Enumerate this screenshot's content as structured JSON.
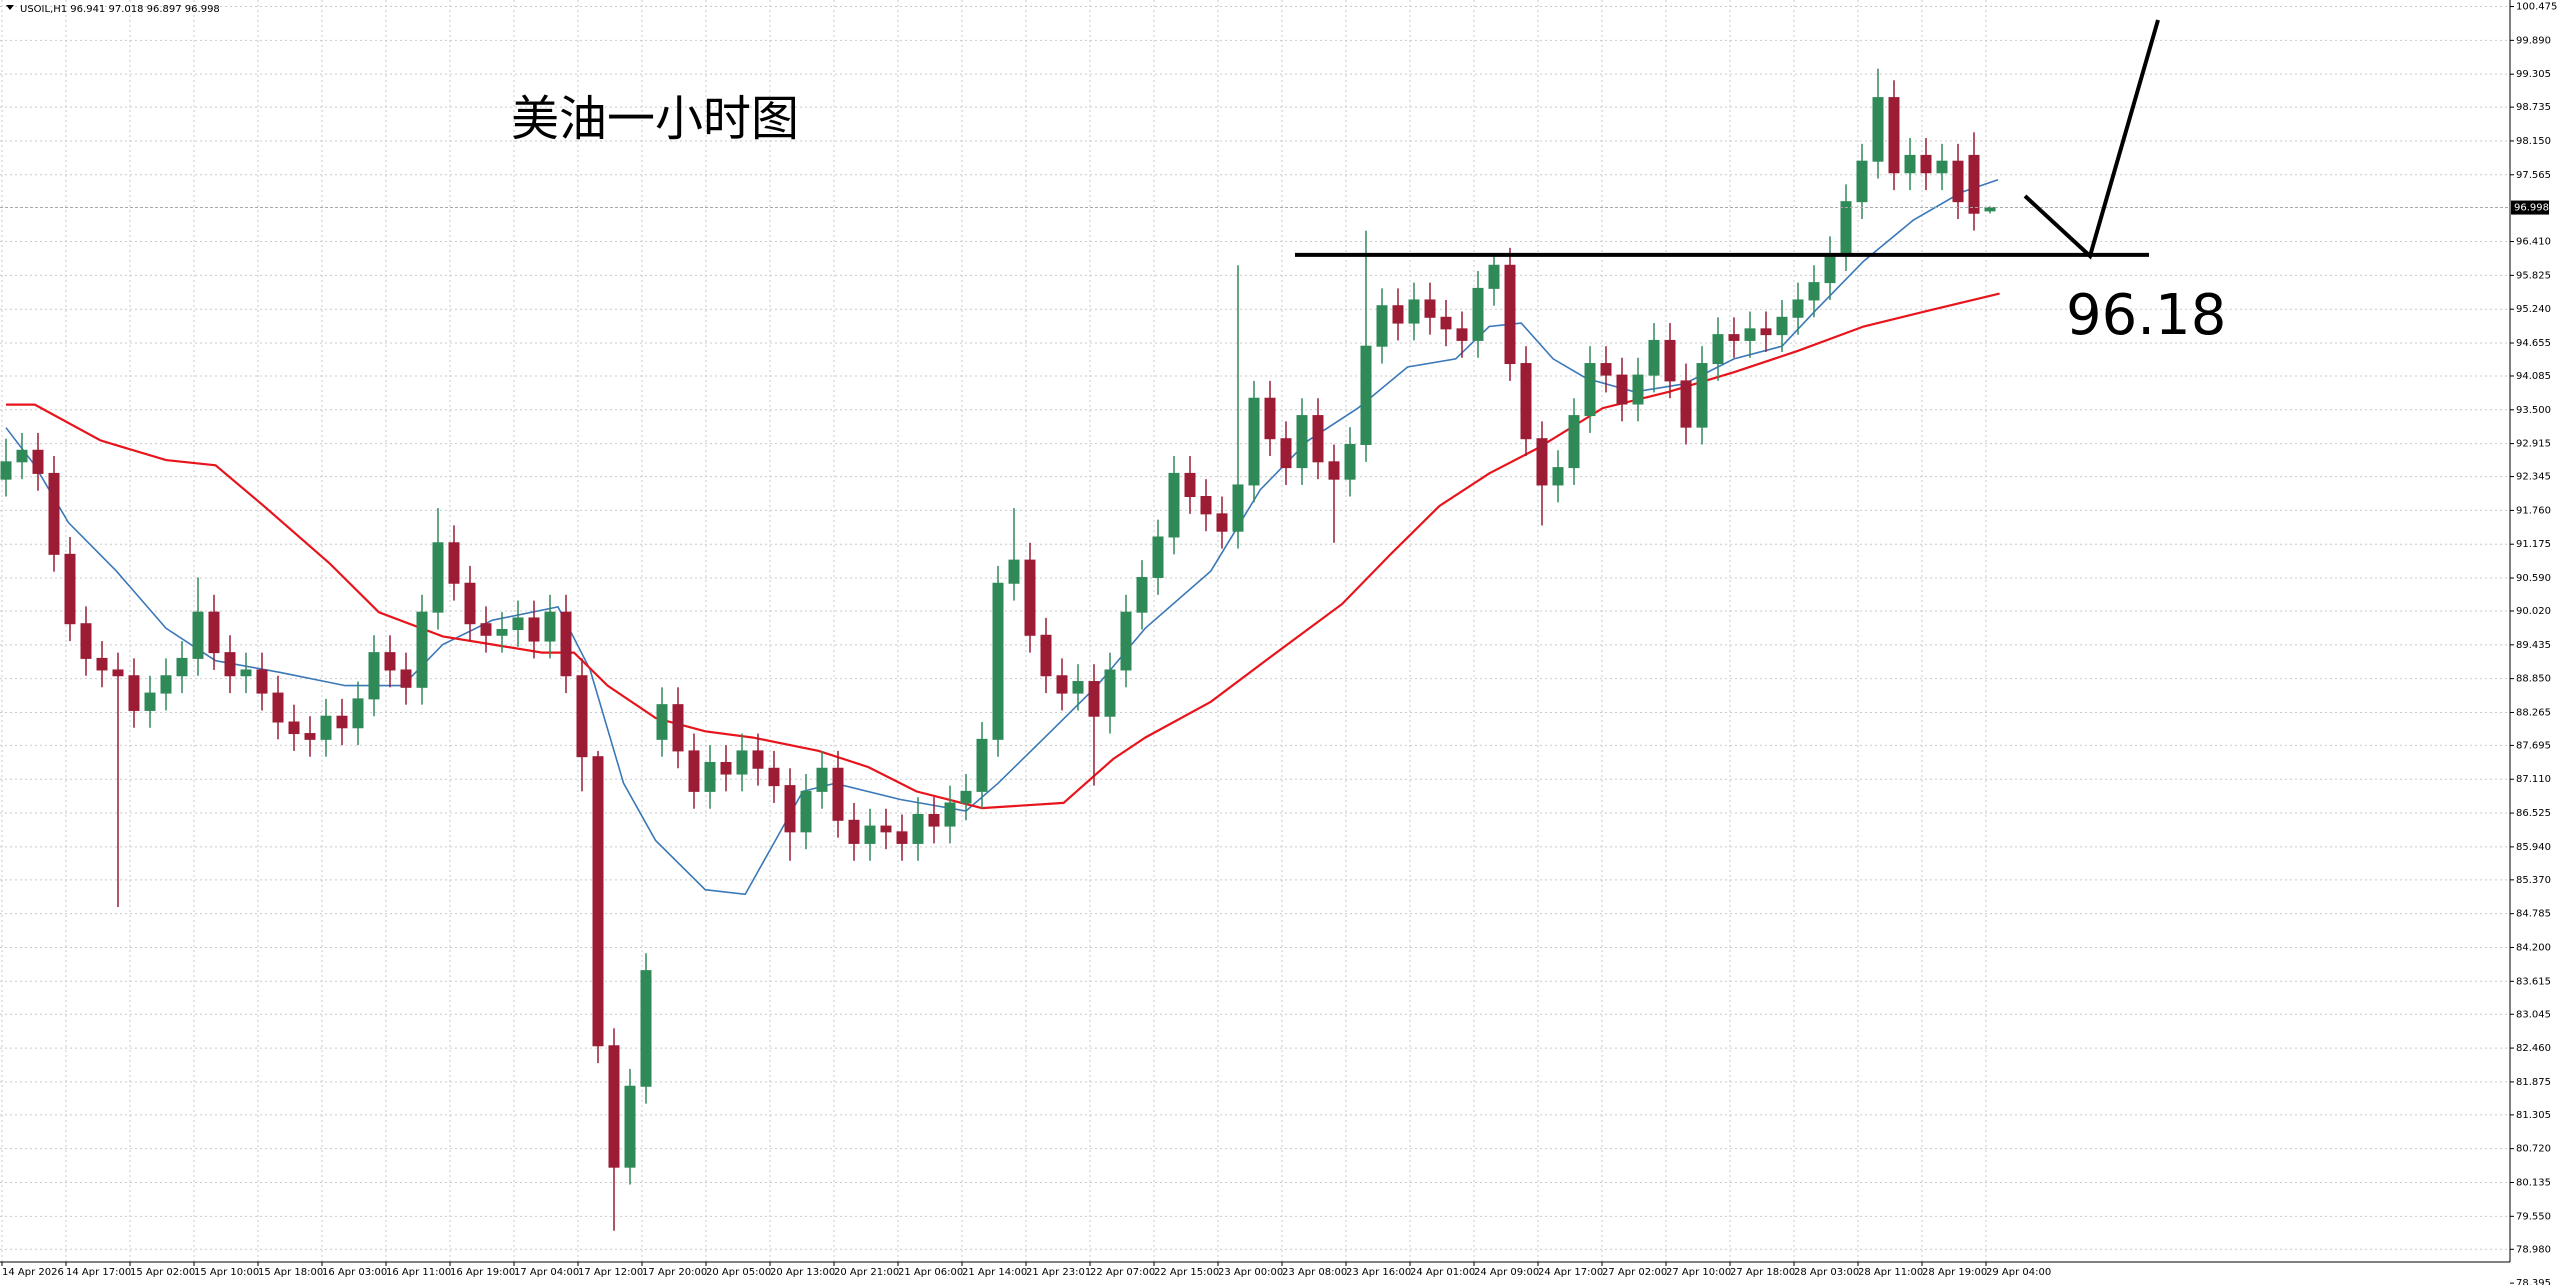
{
  "chart_data": {
    "type": "candlestick",
    "title": "USOIL,H1 96.941 97.018 96.897 96.998",
    "annotation": "美油一小时图",
    "level": 96.18,
    "x_labels": [
      "14 Apr 2026",
      "14 Apr 17:00",
      "15 Apr 02:00",
      "15 Apr 10:00",
      "15 Apr 18:00",
      "16 Apr 03:00",
      "16 Apr 11:00",
      "16 Apr 19:00",
      "17 Apr 04:00",
      "17 Apr 12:00",
      "17 Apr 20:00",
      "20 Apr 05:00",
      "20 Apr 13:00",
      "20 Apr 21:00",
      "21 Apr 06:00",
      "21 Apr 14:00",
      "21 Apr 23:01",
      "22 Apr 07:00",
      "22 Apr 15:00",
      "23 Apr 00:00",
      "23 Apr 08:00",
      "23 Apr 16:00",
      "24 Apr 01:00",
      "24 Apr 09:00",
      "24 Apr 17:00",
      "27 Apr 02:00",
      "27 Apr 10:00",
      "27 Apr 18:00",
      "28 Apr 03:00",
      "28 Apr 11:00",
      "28 Apr 19:00",
      "29 Apr 04:00"
    ],
    "open": [
      92.3,
      92.6,
      92.8,
      92.4,
      91.0,
      89.8,
      89.2,
      89.0,
      88.9,
      88.3,
      88.6,
      88.9,
      89.2,
      90.0,
      89.3,
      88.9,
      89.0,
      88.6,
      88.1,
      87.9,
      87.8,
      88.2,
      88.0,
      88.5,
      89.3,
      89.0,
      88.7,
      90.0,
      91.2,
      90.5,
      89.8,
      89.6,
      89.7,
      89.9,
      89.5,
      90.0,
      88.9,
      87.5,
      82.5,
      80.4,
      81.8,
      87.8,
      88.4,
      87.6,
      86.9,
      87.4,
      87.2,
      87.6,
      87.3,
      87.0,
      86.2,
      86.9,
      87.3,
      86.4,
      86.0,
      86.3,
      86.2,
      86.0,
      86.5,
      86.3,
      86.7,
      86.9,
      87.8,
      90.5,
      90.9,
      89.6,
      88.9,
      88.6,
      88.8,
      88.2,
      89.0,
      90.0,
      90.6,
      91.3,
      92.4,
      92.0,
      91.7,
      91.4,
      92.2,
      93.7,
      93.0,
      92.5,
      93.4,
      92.6,
      92.3,
      92.9,
      94.6,
      95.3,
      95.0,
      95.4,
      95.1,
      94.9,
      94.7,
      95.6,
      96.0,
      94.3,
      93.0,
      92.2,
      92.5,
      93.4,
      94.3,
      94.1,
      93.6,
      94.1,
      94.7,
      94.0,
      93.2,
      94.3,
      94.8,
      94.7,
      94.9,
      94.8,
      95.1,
      95.4,
      95.7,
      96.2,
      97.1,
      97.8,
      98.9,
      97.6,
      97.9,
      97.6,
      97.8,
      97.9,
      96.941
    ],
    "high": [
      93.0,
      93.1,
      93.1,
      92.7,
      91.3,
      90.1,
      89.5,
      89.3,
      89.2,
      88.9,
      89.2,
      89.5,
      90.6,
      90.3,
      89.6,
      89.3,
      89.3,
      88.9,
      88.4,
      88.2,
      88.5,
      88.5,
      88.8,
      89.6,
      89.6,
      89.3,
      90.3,
      91.8,
      91.5,
      90.8,
      90.1,
      90.0,
      90.2,
      90.2,
      90.3,
      90.3,
      89.2,
      87.6,
      82.8,
      82.1,
      84.1,
      88.7,
      88.7,
      87.9,
      87.7,
      87.7,
      87.9,
      87.9,
      87.6,
      87.3,
      87.2,
      87.6,
      87.6,
      86.7,
      86.6,
      86.6,
      86.5,
      86.8,
      86.8,
      87.0,
      87.2,
      88.1,
      90.8,
      91.8,
      91.2,
      89.9,
      89.2,
      89.1,
      89.1,
      89.3,
      90.3,
      90.9,
      91.6,
      92.7,
      92.7,
      92.3,
      92.0,
      96.0,
      94.0,
      94.0,
      93.3,
      93.7,
      93.7,
      92.9,
      93.2,
      96.6,
      95.6,
      95.6,
      95.7,
      95.7,
      95.4,
      95.2,
      95.9,
      96.2,
      96.3,
      94.6,
      93.3,
      92.8,
      93.7,
      94.6,
      94.6,
      94.4,
      94.4,
      95.0,
      95.0,
      94.3,
      94.6,
      95.1,
      95.1,
      95.2,
      95.2,
      95.4,
      95.7,
      96.0,
      96.5,
      97.4,
      98.1,
      99.4,
      99.2,
      98.2,
      98.2,
      98.1,
      98.1,
      98.3,
      97.018
    ],
    "low": [
      92.0,
      92.3,
      92.1,
      90.7,
      89.5,
      88.9,
      88.7,
      84.9,
      88.0,
      88.0,
      88.3,
      88.6,
      88.9,
      89.0,
      88.6,
      88.6,
      88.3,
      87.8,
      87.6,
      87.5,
      87.5,
      87.7,
      87.7,
      88.2,
      88.7,
      88.4,
      88.4,
      89.7,
      90.2,
      89.5,
      89.3,
      89.3,
      89.4,
      89.2,
      89.2,
      88.6,
      86.9,
      82.2,
      79.3,
      80.1,
      81.5,
      87.5,
      87.3,
      86.6,
      86.6,
      86.9,
      86.9,
      87.0,
      86.7,
      85.7,
      85.9,
      86.6,
      86.1,
      85.7,
      85.7,
      85.9,
      85.7,
      85.7,
      86.0,
      86.0,
      86.4,
      86.6,
      87.5,
      90.2,
      89.3,
      88.6,
      88.3,
      88.3,
      87.0,
      87.9,
      88.7,
      89.7,
      90.3,
      91.0,
      91.7,
      91.4,
      91.1,
      91.1,
      91.9,
      92.7,
      92.2,
      92.2,
      92.3,
      91.2,
      92.0,
      92.6,
      94.3,
      94.7,
      94.7,
      94.8,
      94.6,
      94.4,
      94.4,
      95.3,
      94.0,
      92.7,
      91.5,
      91.9,
      92.2,
      93.1,
      93.8,
      93.3,
      93.3,
      93.8,
      93.7,
      92.9,
      92.9,
      94.0,
      94.4,
      94.4,
      94.5,
      94.5,
      94.8,
      95.1,
      95.4,
      95.9,
      96.8,
      97.5,
      97.3,
      97.3,
      97.3,
      97.3,
      96.8,
      96.6,
      96.897
    ],
    "close": [
      92.6,
      92.8,
      92.4,
      91.0,
      89.8,
      89.2,
      89.0,
      88.9,
      88.3,
      88.6,
      88.9,
      89.2,
      90.0,
      89.3,
      88.9,
      89.0,
      88.6,
      88.1,
      87.9,
      87.8,
      88.2,
      88.0,
      88.5,
      89.3,
      89.0,
      88.7,
      90.0,
      91.2,
      90.5,
      89.8,
      89.6,
      89.7,
      89.9,
      89.5,
      90.0,
      88.9,
      87.5,
      82.5,
      80.4,
      81.8,
      83.8,
      88.4,
      87.6,
      86.9,
      87.4,
      87.2,
      87.6,
      87.3,
      87.0,
      86.2,
      86.9,
      87.3,
      86.4,
      86.0,
      86.3,
      86.2,
      86.0,
      86.5,
      86.3,
      86.7,
      86.9,
      87.8,
      90.5,
      90.9,
      89.6,
      88.9,
      88.6,
      88.8,
      88.2,
      89.0,
      90.0,
      90.6,
      91.3,
      92.4,
      92.0,
      91.7,
      91.4,
      92.2,
      93.7,
      93.0,
      92.5,
      93.4,
      92.6,
      92.3,
      92.9,
      94.6,
      95.3,
      95.0,
      95.4,
      95.1,
      94.9,
      94.7,
      95.6,
      96.0,
      94.3,
      93.0,
      92.2,
      92.5,
      93.4,
      94.3,
      94.1,
      93.6,
      94.1,
      94.7,
      94.0,
      93.2,
      94.3,
      94.8,
      94.7,
      94.9,
      94.8,
      95.1,
      95.4,
      95.7,
      96.2,
      97.1,
      97.8,
      98.9,
      97.6,
      97.9,
      97.6,
      97.8,
      97.1,
      96.9,
      96.998
    ],
    "up_color": "#2f8a58",
    "down_color": "#9b1c34",
    "moving_averages": [
      {
        "color": "#3a78b8",
        "x": [
          0,
          1.8,
          3.9,
          6.9,
          10,
          13.1,
          17.1,
          21.2,
          24.8,
          27.3,
          30.4,
          34.5,
          36.5,
          38.6,
          40.6,
          43.7,
          46.2,
          47.8,
          49.8,
          51.8,
          55.9,
          60,
          62,
          65.1,
          68.2,
          71.2,
          75.3,
          78.4,
          81.4,
          84.5,
          87.6,
          90.6,
          92.7,
          94.7,
          96.7,
          98.8,
          101.8,
          104.9,
          108,
          111,
          113.1,
          116.1,
          119.2,
          122.2,
          124.5
        ],
        "values": [
          93.19,
          92.54,
          91.55,
          90.71,
          89.72,
          89.16,
          88.96,
          88.73,
          88.73,
          89.44,
          89.86,
          90.09,
          89.01,
          87.04,
          86.05,
          85.2,
          85.12,
          85.91,
          86.9,
          87.04,
          86.76,
          86.56,
          87.04,
          87.88,
          88.73,
          89.72,
          90.71,
          92.12,
          92.97,
          93.53,
          94.24,
          94.38,
          94.94,
          95.0,
          94.38,
          94.04,
          93.81,
          93.95,
          94.38,
          94.6,
          95.22,
          96.07,
          96.78,
          97.26,
          97.48
        ]
      },
      {
        "color": "#e8141c",
        "x": [
          0,
          1.8,
          5.9,
          10,
          13.1,
          16.1,
          20.2,
          23.3,
          27.3,
          30.4,
          33.5,
          35.5,
          37.6,
          40.6,
          43.7,
          46.7,
          50.8,
          53.9,
          56.9,
          61,
          66.1,
          69.2,
          71.2,
          75.3,
          79.4,
          83.5,
          86.5,
          89.6,
          92.7,
          95.7,
          99.8,
          103.9,
          108,
          112,
          116.1,
          120.2,
          124.6
        ],
        "values": [
          93.59,
          93.59,
          92.97,
          92.63,
          92.54,
          91.84,
          90.85,
          90.0,
          89.58,
          89.44,
          89.3,
          89.3,
          88.73,
          88.17,
          87.94,
          87.83,
          87.6,
          87.32,
          86.9,
          86.61,
          86.7,
          87.46,
          87.83,
          88.45,
          89.3,
          90.14,
          90.99,
          91.84,
          92.4,
          92.83,
          93.53,
          93.81,
          94.15,
          94.52,
          94.94,
          95.22,
          95.51
        ]
      }
    ],
    "ylim": [
      78.395,
      100.588
    ],
    "yticks": [
      100.475,
      {
        "value": 99.89,
        "label": "99.890"
      },
      99.305,
      98.735,
      {
        "value": 98.15,
        "label": "98.150"
      },
      97.565,
      {
        "value": 96.41,
        "label": "96.410"
      },
      95.825,
      {
        "value": 95.24,
        "label": "95.240"
      },
      94.655,
      94.085,
      {
        "value": 93.5,
        "label": "93.500"
      },
      92.915,
      92.345,
      {
        "value": 91.76,
        "label": "91.760"
      },
      91.175,
      {
        "value": 90.59,
        "label": "90.590"
      },
      {
        "value": 90.02,
        "label": "90.020"
      },
      89.435,
      {
        "value": 88.85,
        "label": "88.850"
      },
      88.265,
      87.695,
      {
        "value": 87.11,
        "label": "87.110"
      },
      86.525,
      {
        "value": 85.94,
        "label": "85.940"
      },
      {
        "value": 85.37,
        "label": "85.370"
      },
      84.785,
      {
        "value": 84.2,
        "label": "84.200"
      },
      83.615,
      83.045,
      {
        "value": 82.46,
        "label": "82.460"
      },
      81.875,
      81.305,
      {
        "value": 80.72,
        "label": "80.720"
      },
      80.135,
      {
        "value": 79.55,
        "label": "79.550"
      },
      {
        "value": 78.98,
        "label": "78.980"
      },
      78.395
    ],
    "grid": true
  }
}
